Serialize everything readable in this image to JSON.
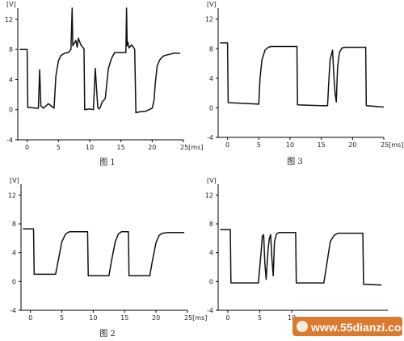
{
  "chart_data": [
    {
      "type": "line",
      "caption": "图 1",
      "unit_y": "[V]",
      "unit_x": "[ms]",
      "yticks": [
        12,
        8,
        4,
        0,
        -4
      ],
      "xticks": [
        "0",
        "5",
        "10",
        "15",
        "20",
        "25"
      ],
      "xlim": [
        -1.5,
        25
      ],
      "ylim": [
        -4,
        13.5
      ],
      "series": [
        {
          "x": [
            -1.2,
            0.0,
            0.1,
            1.5,
            1.8,
            2.0,
            2.2,
            2.6,
            3.4,
            4.0,
            4.3,
            4.6,
            5.0,
            5.4,
            6.0,
            6.6,
            7.0,
            7.2,
            7.3,
            7.5,
            7.8,
            8.0,
            8.2,
            8.6,
            9.0,
            9.1,
            9.2,
            10.0,
            10.6,
            10.9,
            11.3,
            11.5,
            11.7,
            12.0,
            12.5,
            13.0,
            13.5,
            14.0,
            15.0,
            15.8,
            15.9,
            16.0,
            16.1,
            16.3,
            16.7,
            17.0,
            17.2,
            17.4,
            17.9,
            19.0,
            20.0,
            20.3,
            20.5,
            20.8,
            21.2,
            21.6,
            22.0,
            22.5,
            23.0,
            23.5,
            24.5
          ],
          "y": [
            8.0,
            8.0,
            0.3,
            0.2,
            0.2,
            5.3,
            0.5,
            0.2,
            0.8,
            0.4,
            0.2,
            4.5,
            6.5,
            7.2,
            7.5,
            7.6,
            8.0,
            13.5,
            8.5,
            8.8,
            9.2,
            8.3,
            9.5,
            8.6,
            8.2,
            8.1,
            0.0,
            0.1,
            0.0,
            5.5,
            0.3,
            0.1,
            0.3,
            1.0,
            1.5,
            5.5,
            6.8,
            7.6,
            7.6,
            7.6,
            13.5,
            8.5,
            9.0,
            8.2,
            8.6,
            8.3,
            8.0,
            -0.4,
            -0.3,
            -0.2,
            0.2,
            1.2,
            3.5,
            5.8,
            6.6,
            7.0,
            7.2,
            7.3,
            7.4,
            7.5,
            7.5
          ]
        }
      ]
    },
    {
      "type": "line",
      "caption": "图 3",
      "unit_y": "[V]",
      "unit_x": "[ms]",
      "yticks": [
        12,
        8,
        4,
        0,
        -4
      ],
      "xticks": [
        "0",
        "5",
        "10",
        "15",
        "20",
        "25"
      ],
      "xlim": [
        -1.5,
        25
      ],
      "ylim": [
        -4,
        13.5
      ],
      "series": [
        {
          "x": [
            -1.2,
            0.0,
            0.1,
            5.0,
            5.2,
            5.5,
            6.0,
            6.5,
            7.0,
            8.0,
            11.0,
            11.1,
            11.2,
            15.0,
            16.0,
            16.2,
            16.4,
            16.8,
            17.0,
            17.2,
            17.4,
            17.6,
            17.9,
            18.3,
            18.8,
            22.0,
            22.1,
            22.2,
            25.0
          ],
          "y": [
            8.8,
            8.8,
            0.7,
            0.5,
            4.0,
            6.5,
            7.8,
            8.2,
            8.3,
            8.3,
            8.3,
            8.3,
            0.4,
            0.3,
            0.3,
            3.5,
            6.5,
            7.8,
            4.5,
            2.0,
            0.8,
            5.5,
            7.5,
            8.1,
            8.2,
            8.2,
            8.2,
            0.3,
            0.1
          ]
        }
      ]
    },
    {
      "type": "line",
      "caption": "图 2",
      "unit_y": "[V]",
      "unit_x": "[ms]",
      "yticks": [
        12,
        8,
        4,
        0,
        -4
      ],
      "xticks": [
        "0",
        "5",
        "10",
        "15",
        "20",
        "25"
      ],
      "xlim": [
        -1.5,
        25
      ],
      "ylim": [
        -4,
        13.5
      ],
      "series": [
        {
          "x": [
            -1.2,
            0.5,
            0.6,
            4.0,
            4.4,
            5.0,
            5.6,
            6.2,
            9.0,
            9.1,
            9.2,
            12.5,
            12.9,
            13.5,
            14.0,
            14.5,
            15.5,
            15.6,
            15.7,
            19.0,
            19.4,
            20.0,
            20.5,
            21.0,
            22.0,
            24.5
          ],
          "y": [
            7.3,
            7.3,
            1.0,
            1.0,
            2.8,
            5.5,
            6.6,
            6.9,
            6.9,
            6.9,
            0.8,
            0.8,
            2.8,
            5.5,
            6.6,
            6.9,
            6.9,
            6.9,
            0.8,
            0.8,
            2.8,
            5.4,
            6.4,
            6.7,
            6.8,
            6.8
          ]
        }
      ]
    },
    {
      "type": "line",
      "caption": "",
      "unit_y": "[V]",
      "unit_x": "",
      "yticks": [
        12,
        8,
        4,
        0,
        -4
      ],
      "xticks": [
        "0",
        "5",
        "10"
      ],
      "xlim": [
        -1.5,
        25
      ],
      "ylim": [
        -4,
        13.5
      ],
      "series": [
        {
          "x": [
            -1.2,
            0.4,
            0.5,
            4.8,
            4.9,
            5.2,
            5.4,
            5.6,
            5.8,
            6.0,
            6.3,
            6.5,
            6.7,
            6.9,
            7.1,
            7.3,
            7.6,
            8.0,
            8.5,
            10.5,
            10.6,
            10.7,
            15.0,
            15.4,
            16.0,
            16.6,
            17.2,
            18.5,
            21.0,
            21.1,
            21.2,
            24.0
          ],
          "y": [
            7.2,
            7.2,
            -0.2,
            -0.2,
            1.0,
            4.0,
            6.3,
            6.5,
            2.5,
            0.3,
            4.5,
            6.0,
            6.5,
            3.0,
            0.8,
            5.5,
            6.6,
            6.8,
            6.8,
            6.8,
            6.8,
            -0.2,
            -0.2,
            2.0,
            5.5,
            6.4,
            6.7,
            6.7,
            6.7,
            6.7,
            -0.4,
            -0.5
          ]
        }
      ]
    }
  ],
  "watermark": {
    "site": "www.55dianzi.com"
  }
}
